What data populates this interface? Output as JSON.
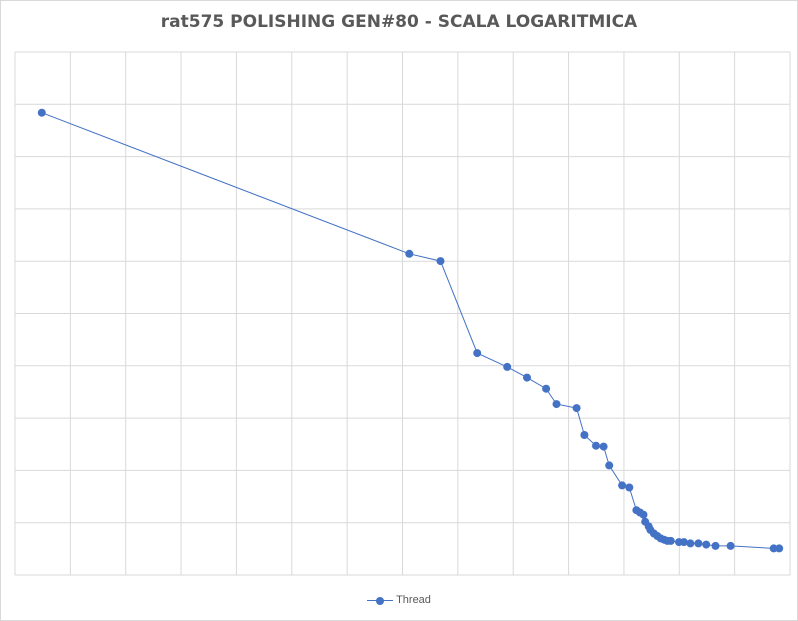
{
  "chart_data": {
    "type": "line",
    "title": "rat575 POLISHING GEN#80 - SCALA LOGARITMICA",
    "xlabel": "",
    "ylabel": "",
    "xscale": "log",
    "yscale": "log",
    "grid": true,
    "legend_position": "bottom",
    "series": [
      {
        "name": "Thread",
        "color": "#4472c4",
        "x": [
          1.05,
          2.05,
          2.17,
          2.32,
          2.45,
          2.54,
          2.63,
          2.68,
          2.78,
          2.82,
          2.88,
          2.92,
          2.95,
          3.02,
          3.06,
          3.1,
          3.12,
          3.14,
          3.15,
          3.17,
          3.18,
          3.2,
          3.22,
          3.24,
          3.26,
          3.28,
          3.3,
          3.35,
          3.38,
          3.42,
          3.47,
          3.52,
          3.58,
          3.68,
          3.98,
          4.02
        ],
        "y": [
          10.0,
          6.3,
          6.15,
          4.55,
          4.35,
          4.2,
          4.05,
          3.85,
          3.8,
          3.48,
          3.36,
          3.35,
          3.15,
          2.95,
          2.93,
          2.72,
          2.7,
          2.68,
          2.62,
          2.58,
          2.55,
          2.52,
          2.5,
          2.48,
          2.47,
          2.46,
          2.46,
          2.45,
          2.45,
          2.44,
          2.44,
          2.43,
          2.42,
          2.42,
          2.4,
          2.4
        ]
      }
    ]
  }
}
